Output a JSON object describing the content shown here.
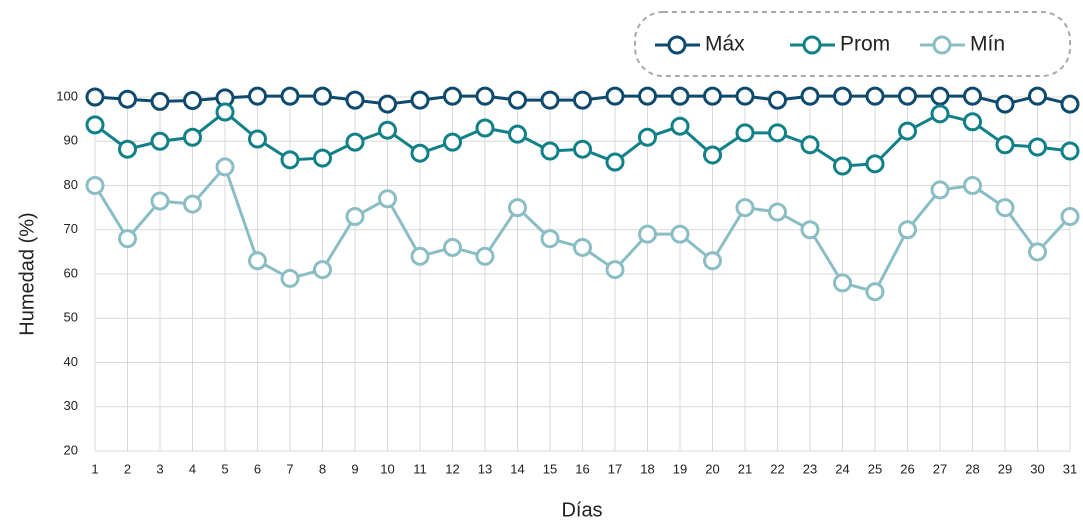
{
  "chart_data": {
    "type": "line",
    "x_label": "Días",
    "y_label": "Humedad (%)",
    "categories": [
      1,
      2,
      3,
      4,
      5,
      6,
      7,
      8,
      9,
      10,
      11,
      12,
      13,
      14,
      15,
      16,
      17,
      18,
      19,
      20,
      21,
      22,
      23,
      24,
      25,
      26,
      27,
      28,
      29,
      30,
      31
    ],
    "series": [
      {
        "name": "Máx",
        "color": "#0d4a6e",
        "values": [
          100,
          99.5,
          99,
          99.2,
          99.8,
          100.2,
          100.2,
          100.2,
          99.3,
          98.4,
          99.3,
          100.2,
          100.2,
          99.3,
          99.3,
          99.3,
          100.2,
          100.2,
          100.2,
          100.2,
          100.2,
          99.3,
          100.2,
          100.2,
          100.2,
          100.2,
          100.2,
          100.2,
          98.4,
          100.2,
          98.4
        ]
      },
      {
        "name": "Prom",
        "color": "#118088",
        "values": [
          93.7,
          88.2,
          90,
          90.9,
          96.6,
          90.5,
          85.8,
          86.2,
          89.8,
          92.5,
          87.3,
          89.8,
          93,
          91.6,
          87.8,
          88.2,
          85.3,
          90.9,
          93.4,
          86.9,
          91.9,
          91.9,
          89.2,
          84.4,
          84.9,
          92.3,
          96.2,
          94.4,
          89.2,
          88.7,
          87.8
        ]
      },
      {
        "name": "Mín",
        "color": "#8bbec4",
        "values": [
          80,
          68,
          76.5,
          75.8,
          84.2,
          63,
          59,
          61,
          73,
          77,
          64,
          66,
          64,
          75,
          68,
          66,
          61,
          69,
          69,
          63,
          75,
          74,
          70,
          58,
          56,
          70,
          79,
          80,
          75,
          65,
          73
        ]
      }
    ],
    "ylim": [
      20,
      100
    ],
    "yticks": [
      20,
      30,
      40,
      50,
      60,
      70,
      80,
      90,
      100
    ],
    "grid": true,
    "legend": "top-right"
  }
}
